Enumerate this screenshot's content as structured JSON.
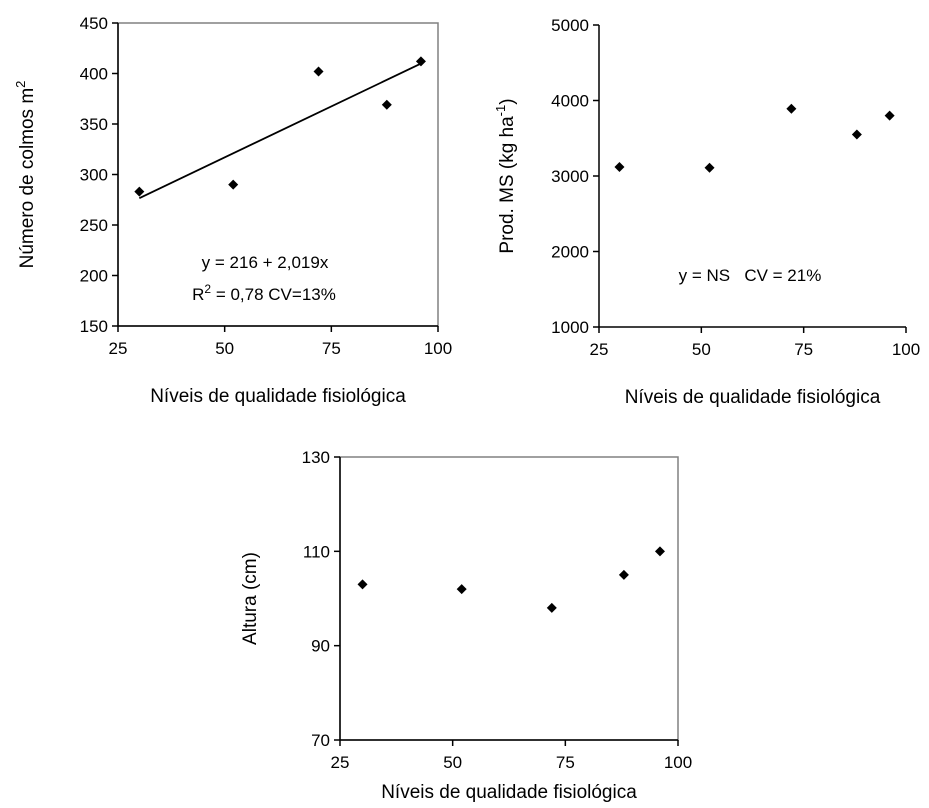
{
  "chart_data": [
    {
      "type": "scatter",
      "xlabel": "Níveis de qualidade fisiológica",
      "ylabel": "Número de colmos m",
      "ylabel_sup": "2",
      "xlim": [
        25,
        100
      ],
      "ylim": [
        150,
        450
      ],
      "xticks": [
        "25",
        "50",
        "75",
        "100"
      ],
      "yticks": [
        "150",
        "200",
        "250",
        "300",
        "350",
        "400",
        "450"
      ],
      "x": [
        30,
        52,
        72,
        88,
        96
      ],
      "y": [
        283,
        290,
        402,
        369,
        412
      ],
      "trendline": {
        "intercept": 216,
        "slope": 2.019,
        "x_range": [
          30,
          96
        ]
      },
      "annotations": {
        "equation": "y = 216 + 2,019x",
        "r2_prefix": "R",
        "r2_sup": "2",
        "r2_rest": " = 0,78 CV=13%"
      },
      "grid": false,
      "legend": "none"
    },
    {
      "type": "scatter",
      "xlabel": "Níveis de qualidade fisiológica",
      "ylabel": "Prod. MS (kg ha",
      "ylabel_sup": "-1",
      "ylabel_close": ")",
      "xlim": [
        25,
        100
      ],
      "ylim": [
        1000,
        5000
      ],
      "xticks": [
        "25",
        "50",
        "75",
        "100"
      ],
      "yticks": [
        "1000",
        "2000",
        "3000",
        "4000",
        "5000"
      ],
      "x": [
        30,
        52,
        72,
        88,
        96
      ],
      "y": [
        3120,
        3110,
        3890,
        3550,
        3800
      ],
      "annotations": {
        "stat": "y = NS   CV = 21%"
      },
      "grid": false,
      "legend": "none"
    },
    {
      "type": "scatter",
      "xlabel": "Níveis de qualidade fisiológica",
      "ylabel": "Altura (cm)",
      "xlim": [
        25,
        100
      ],
      "ylim": [
        70,
        130
      ],
      "xticks": [
        "25",
        "50",
        "75",
        "100"
      ],
      "yticks": [
        "70",
        "90",
        "110",
        "130"
      ],
      "x": [
        30,
        52,
        72,
        88,
        96
      ],
      "y": [
        103,
        102,
        98,
        105,
        110
      ],
      "grid": false,
      "legend": "none"
    }
  ]
}
